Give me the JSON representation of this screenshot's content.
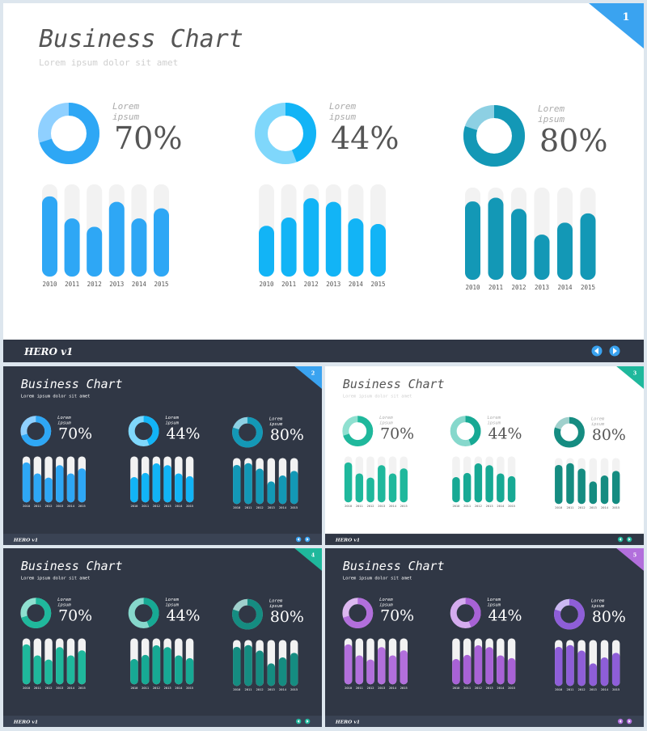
{
  "common": {
    "title_plain": "Business ",
    "title_italic": "Chart",
    "subtitle": "Lorem ipsum dolor sit amet",
    "chart_label_1": "Lorem",
    "chart_label_2": "ipsum",
    "footer_logo": "HERO v1",
    "prev_icon": "chevron-left-icon",
    "next_icon": "chevron-right-icon"
  },
  "slides": [
    {
      "number": "1",
      "theme": "light",
      "bg": "#ffffff",
      "accent": "#3aa3f0",
      "colors": [
        "#2ea7f5",
        "#12b4f6",
        "#1398b6"
      ],
      "track": "#f2f2f2",
      "title_color": "#555555",
      "subtitle_color": "#cfcfcf",
      "ring_light": [
        "#8fd0ff",
        "#7fd7fb",
        "#8dd0e3"
      ]
    },
    {
      "number": "2",
      "theme": "dark",
      "bg": "#303745",
      "accent": "#3aa3f0",
      "colors": [
        "#2ea7f5",
        "#12b4f6",
        "#1398b6"
      ],
      "track": "#f2f2f2",
      "title_color": "#ffffff",
      "subtitle_color": "#ffffff",
      "ring_light": [
        "#8fd0ff",
        "#7fd7fb",
        "#8dd0e3"
      ]
    },
    {
      "number": "3",
      "theme": "light",
      "bg": "#ffffff",
      "accent": "#1fb89c",
      "colors": [
        "#1fb89c",
        "#17a994",
        "#158c81"
      ],
      "track": "#f2f2f2",
      "title_color": "#555555",
      "subtitle_color": "#cfcfcf",
      "ring_light": [
        "#8fe0d0",
        "#86d8cc",
        "#9fd0cc"
      ]
    },
    {
      "number": "4",
      "theme": "dark",
      "bg": "#303745",
      "accent": "#1fb89c",
      "colors": [
        "#1fb89c",
        "#17a994",
        "#158c81"
      ],
      "track": "#f2f2f2",
      "title_color": "#ffffff",
      "subtitle_color": "#ffffff",
      "ring_light": [
        "#8fe0d0",
        "#86d8cc",
        "#9fd0cc"
      ]
    },
    {
      "number": "5",
      "theme": "dark",
      "bg": "#303745",
      "accent": "#b26fdc",
      "colors": [
        "#b26fdc",
        "#a862d6",
        "#8e5ed8"
      ],
      "track": "#f2f2f2",
      "title_color": "#ffffff",
      "subtitle_color": "#ffffff",
      "ring_light": [
        "#dcb8f0",
        "#d4acee",
        "#cbb8f2"
      ]
    }
  ],
  "chart_data": [
    {
      "type": "pie",
      "variant": "donut",
      "percent_label": "70%",
      "values": [
        70,
        30
      ]
    },
    {
      "type": "pie",
      "variant": "donut",
      "percent_label": "44%",
      "values": [
        44,
        56
      ]
    },
    {
      "type": "pie",
      "variant": "donut",
      "percent_label": "80%",
      "values": [
        80,
        20
      ]
    },
    {
      "type": "bar",
      "categories": [
        "2010",
        "2011",
        "2012",
        "2013",
        "2014",
        "2015"
      ],
      "values": [
        87,
        63,
        54,
        81,
        63,
        74
      ],
      "ylim": [
        0,
        100
      ]
    },
    {
      "type": "bar",
      "categories": [
        "2010",
        "2011",
        "2012",
        "2013",
        "2014",
        "2015"
      ],
      "values": [
        55,
        64,
        85,
        81,
        63,
        57
      ],
      "ylim": [
        0,
        100
      ]
    },
    {
      "type": "bar",
      "categories": [
        "2010",
        "2011",
        "2012",
        "2013",
        "2014",
        "2015"
      ],
      "values": [
        85,
        89,
        77,
        49,
        62,
        72
      ],
      "ylim": [
        0,
        100
      ]
    }
  ]
}
